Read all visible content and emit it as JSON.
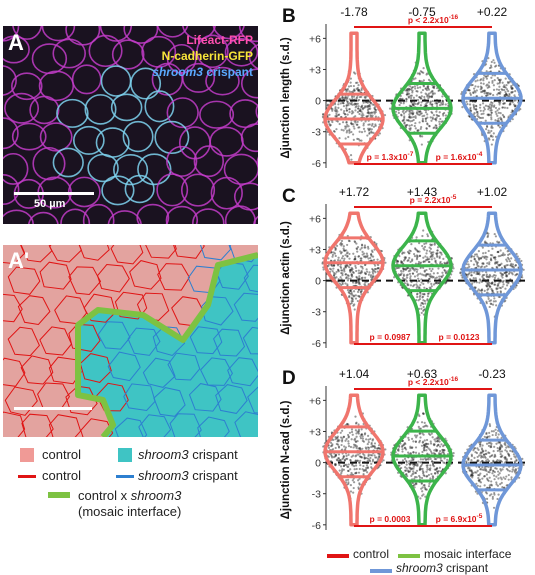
{
  "panels": {
    "A": {
      "label": "A",
      "channels": [
        {
          "text": "Lifeact-RFP",
          "color": "#ff4fb0",
          "italic": false
        },
        {
          "text": "N-cadherin-GFP",
          "color": "#f7e53a",
          "italic": false
        },
        {
          "text": "shroom3",
          "color": "#5aa9ff",
          "italic": true,
          "suffix": " crispant"
        }
      ],
      "scale_bar": "50 µm"
    },
    "A2": {
      "label": "A'"
    },
    "B": {
      "label": "B"
    },
    "C": {
      "label": "C"
    },
    "D": {
      "label": "D"
    }
  },
  "legend_left": {
    "fill_control": "control",
    "fill_crispant_italic": "shroom3",
    "fill_crispant_suffix": " crispant",
    "line_control": "control",
    "line_crispant_italic": "shroom3",
    "line_crispant_suffix": " crispant",
    "mosaic_line1_pre": "control x ",
    "mosaic_line1_italic": "shroom3",
    "mosaic_line2": "(mosaic interface)",
    "colors": {
      "control_fill": "#f09a96",
      "crispant_fill": "#3fc4c4",
      "control_line": "#e01414",
      "crispant_line": "#2d7fd0",
      "mosaic": "#7dc242"
    }
  },
  "legend_bottom": {
    "control": "control",
    "mosaic": "mosaic interface",
    "crispant_italic": "shroom3",
    "crispant_suffix": " crispant"
  },
  "chart_data": [
    {
      "type": "violin",
      "panel": "B",
      "ylabel": "Δjunction length (s.d.)",
      "yticks": [
        "+6",
        "+3",
        "0",
        "-3",
        "-6"
      ],
      "ylim": [
        -6.5,
        7
      ],
      "categories": [
        "control",
        "mosaic interface",
        "shroom3 crispant"
      ],
      "colors": [
        "#f0756d",
        "#3cb44b",
        "#6f97d8"
      ],
      "medians": [
        "-1.78",
        "-0.75",
        "+0.22"
      ],
      "values": [
        -1.78,
        -0.75,
        0.22
      ],
      "pvalues": [
        {
          "text": "p < 2.2x10",
          "exp": "-16",
          "pair": [
            0,
            2
          ],
          "pos": "top"
        },
        {
          "text": "p = 1.3x10",
          "exp": "-7",
          "pair": [
            0,
            1
          ],
          "pos": "bottom"
        },
        {
          "text": "p = 1.6x10",
          "exp": "-4",
          "pair": [
            1,
            2
          ],
          "pos": "bottom"
        }
      ]
    },
    {
      "type": "violin",
      "panel": "C",
      "ylabel": "Δjunction actin (s.d.)",
      "yticks": [
        "+6",
        "+3",
        "0",
        "-3",
        "-6"
      ],
      "ylim": [
        -6.5,
        7
      ],
      "categories": [
        "control",
        "mosaic interface",
        "shroom3 crispant"
      ],
      "colors": [
        "#f0756d",
        "#3cb44b",
        "#6f97d8"
      ],
      "medians": [
        "+1.72",
        "+1.43",
        "+1.02"
      ],
      "values": [
        1.72,
        1.43,
        1.02
      ],
      "pvalues": [
        {
          "text": "p = 2.2x10",
          "exp": "-5",
          "pair": [
            0,
            2
          ],
          "pos": "top"
        },
        {
          "text": "p = 0.0987",
          "exp": "",
          "pair": [
            0,
            1
          ],
          "pos": "bottom"
        },
        {
          "text": "p = 0.0123",
          "exp": "",
          "pair": [
            1,
            2
          ],
          "pos": "bottom"
        }
      ]
    },
    {
      "type": "violin",
      "panel": "D",
      "ylabel": "Δjunction N-cad (s.d.)",
      "yticks": [
        "+6",
        "+3",
        "0",
        "-3",
        "-6"
      ],
      "ylim": [
        -6.5,
        7
      ],
      "categories": [
        "control",
        "mosaic interface",
        "shroom3 crispant"
      ],
      "colors": [
        "#f0756d",
        "#3cb44b",
        "#6f97d8"
      ],
      "medians": [
        "+1.04",
        "+0.63",
        "-0.23"
      ],
      "values": [
        1.04,
        0.63,
        -0.23
      ],
      "pvalues": [
        {
          "text": "p < 2.2x10",
          "exp": "-16",
          "pair": [
            0,
            2
          ],
          "pos": "top"
        },
        {
          "text": "p = 0.0003",
          "exp": "",
          "pair": [
            0,
            1
          ],
          "pos": "bottom"
        },
        {
          "text": "p = 6.9x10",
          "exp": "-5",
          "pair": [
            1,
            2
          ],
          "pos": "bottom"
        }
      ]
    }
  ]
}
